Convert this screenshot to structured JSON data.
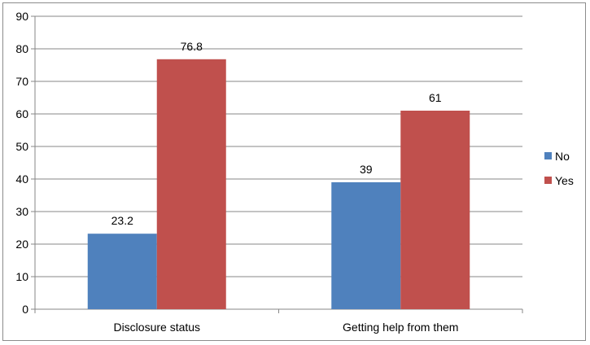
{
  "chart_data": {
    "type": "bar",
    "title": "",
    "xlabel": "",
    "ylabel": "",
    "categories": [
      "Disclosure status",
      "Getting help from them"
    ],
    "series": [
      {
        "name": "No",
        "values": [
          23.2,
          39
        ],
        "color": "#4f81bd"
      },
      {
        "name": "Yes",
        "values": [
          76.8,
          61
        ],
        "color": "#c0504d"
      }
    ],
    "ylim": [
      0,
      90
    ],
    "yticks": [
      0,
      10,
      20,
      30,
      40,
      50,
      60,
      70,
      80,
      90
    ],
    "grid": true,
    "legend_position": "right"
  }
}
